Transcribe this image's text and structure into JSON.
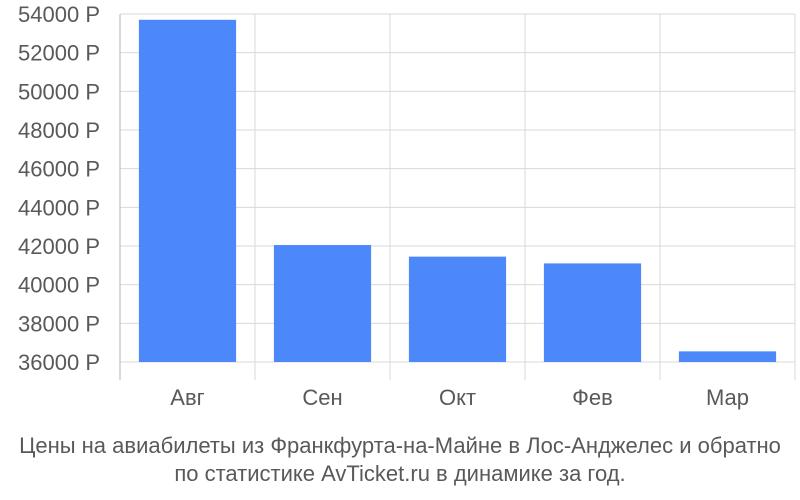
{
  "chart_data": {
    "type": "bar",
    "categories": [
      "Авг",
      "Сен",
      "Окт",
      "Фев",
      "Мар"
    ],
    "values": [
      53700,
      42050,
      41450,
      41100,
      36550
    ],
    "ylim": [
      36000,
      54000
    ],
    "yticks": [
      36000,
      38000,
      40000,
      42000,
      44000,
      46000,
      48000,
      50000,
      52000,
      54000
    ],
    "ytick_labels": [
      "36000 Р",
      "38000 Р",
      "40000 Р",
      "42000 Р",
      "44000 Р",
      "46000 Р",
      "48000 Р",
      "50000 Р",
      "52000 Р",
      "54000 Р"
    ],
    "bar_color": "#4d88fb",
    "grid": true
  },
  "caption": {
    "line1": "Цены на авиабилеты из Франкфурта-на-Майне в Лос-Анджелес и обратно",
    "line2": "по статистике AvTicket.ru в динамике за год."
  }
}
